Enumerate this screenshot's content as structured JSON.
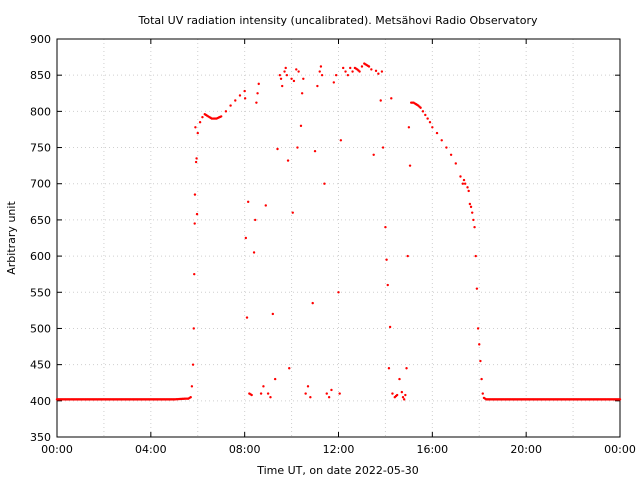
{
  "chart_data": {
    "type": "scatter",
    "title": "Total UV radiation intensity (uncalibrated). Metsähovi Radio Observatory",
    "xlabel": "Time UT, on date 2022-05-30",
    "ylabel": "Arbitrary unit",
    "xlim_hours": [
      0,
      24
    ],
    "ylim": [
      350,
      900
    ],
    "x_ticks": [
      "00:00",
      "04:00",
      "08:00",
      "12:00",
      "16:00",
      "20:00",
      "00:00"
    ],
    "y_ticks": [
      350,
      400,
      450,
      500,
      550,
      600,
      650,
      700,
      750,
      800,
      850,
      900
    ],
    "grid": true,
    "marker_color": "#ff0000",
    "series": [
      {
        "values_hours_vs_intensity": [
          [
            0.0,
            402
          ],
          [
            0.5,
            402
          ],
          [
            1.0,
            402
          ],
          [
            1.5,
            402
          ],
          [
            2.0,
            402
          ],
          [
            2.5,
            402
          ],
          [
            3.0,
            402
          ],
          [
            3.5,
            402
          ],
          [
            4.0,
            402
          ],
          [
            4.5,
            402
          ],
          [
            5.0,
            402
          ],
          [
            5.5,
            403
          ],
          [
            5.6,
            403
          ],
          [
            5.7,
            405
          ],
          [
            5.75,
            420
          ],
          [
            5.8,
            450
          ],
          [
            5.83,
            500
          ],
          [
            5.85,
            575
          ],
          [
            5.87,
            645
          ],
          [
            5.88,
            685
          ],
          [
            5.9,
            778
          ],
          [
            5.93,
            730
          ],
          [
            5.95,
            735
          ],
          [
            5.97,
            658
          ],
          [
            6.0,
            770
          ],
          [
            6.1,
            785
          ],
          [
            6.2,
            792
          ],
          [
            6.3,
            796
          ],
          [
            6.4,
            794
          ],
          [
            6.5,
            792
          ],
          [
            6.6,
            790
          ],
          [
            6.7,
            790
          ],
          [
            6.8,
            790
          ],
          [
            7.0,
            793
          ],
          [
            7.2,
            800
          ],
          [
            7.4,
            808
          ],
          [
            7.6,
            815
          ],
          [
            7.8,
            822
          ],
          [
            8.0,
            828
          ],
          [
            8.02,
            818
          ],
          [
            8.05,
            625
          ],
          [
            8.1,
            515
          ],
          [
            8.15,
            675
          ],
          [
            8.2,
            410
          ],
          [
            8.3,
            408
          ],
          [
            8.4,
            605
          ],
          [
            8.45,
            650
          ],
          [
            8.5,
            812
          ],
          [
            8.55,
            825
          ],
          [
            8.6,
            838
          ],
          [
            8.7,
            410
          ],
          [
            8.8,
            420
          ],
          [
            8.9,
            670
          ],
          [
            9.0,
            410
          ],
          [
            9.1,
            405
          ],
          [
            9.2,
            520
          ],
          [
            9.3,
            430
          ],
          [
            9.4,
            748
          ],
          [
            9.5,
            850
          ],
          [
            9.55,
            845
          ],
          [
            9.6,
            835
          ],
          [
            9.7,
            855
          ],
          [
            9.75,
            860
          ],
          [
            9.8,
            850
          ],
          [
            9.85,
            732
          ],
          [
            9.9,
            445
          ],
          [
            10.0,
            845
          ],
          [
            10.05,
            660
          ],
          [
            10.1,
            842
          ],
          [
            10.2,
            858
          ],
          [
            10.25,
            750
          ],
          [
            10.3,
            855
          ],
          [
            10.4,
            780
          ],
          [
            10.45,
            825
          ],
          [
            10.5,
            845
          ],
          [
            10.6,
            410
          ],
          [
            10.7,
            420
          ],
          [
            10.8,
            405
          ],
          [
            10.9,
            535
          ],
          [
            11.0,
            745
          ],
          [
            11.1,
            835
          ],
          [
            11.2,
            855
          ],
          [
            11.25,
            862
          ],
          [
            11.3,
            850
          ],
          [
            11.4,
            700
          ],
          [
            11.5,
            410
          ],
          [
            11.6,
            405
          ],
          [
            11.7,
            415
          ],
          [
            11.8,
            840
          ],
          [
            11.9,
            850
          ],
          [
            12.0,
            550
          ],
          [
            12.05,
            410
          ],
          [
            12.1,
            760
          ],
          [
            12.2,
            860
          ],
          [
            12.3,
            855
          ],
          [
            12.4,
            850
          ],
          [
            12.5,
            860
          ],
          [
            12.6,
            855
          ],
          [
            12.7,
            860
          ],
          [
            12.8,
            858
          ],
          [
            12.9,
            855
          ],
          [
            13.0,
            862
          ],
          [
            13.1,
            866
          ],
          [
            13.2,
            864
          ],
          [
            13.3,
            862
          ],
          [
            13.4,
            858
          ],
          [
            13.5,
            740
          ],
          [
            13.6,
            856
          ],
          [
            13.7,
            852
          ],
          [
            13.8,
            815
          ],
          [
            13.85,
            855
          ],
          [
            13.9,
            750
          ],
          [
            14.0,
            640
          ],
          [
            14.05,
            595
          ],
          [
            14.1,
            560
          ],
          [
            14.15,
            445
          ],
          [
            14.2,
            502
          ],
          [
            14.25,
            818
          ],
          [
            14.3,
            410
          ],
          [
            14.4,
            405
          ],
          [
            14.5,
            408
          ],
          [
            14.6,
            430
          ],
          [
            14.7,
            412
          ],
          [
            14.75,
            405
          ],
          [
            14.8,
            402
          ],
          [
            14.85,
            408
          ],
          [
            14.9,
            445
          ],
          [
            14.95,
            600
          ],
          [
            15.0,
            778
          ],
          [
            15.05,
            725
          ],
          [
            15.1,
            812
          ],
          [
            15.2,
            812
          ],
          [
            15.3,
            810
          ],
          [
            15.4,
            808
          ],
          [
            15.5,
            805
          ],
          [
            15.6,
            800
          ],
          [
            15.7,
            795
          ],
          [
            15.8,
            790
          ],
          [
            15.9,
            785
          ],
          [
            16.0,
            778
          ],
          [
            16.2,
            770
          ],
          [
            16.4,
            760
          ],
          [
            16.6,
            750
          ],
          [
            16.8,
            740
          ],
          [
            17.0,
            728
          ],
          [
            17.2,
            710
          ],
          [
            17.3,
            700
          ],
          [
            17.35,
            705
          ],
          [
            17.4,
            700
          ],
          [
            17.5,
            695
          ],
          [
            17.55,
            690
          ],
          [
            17.6,
            672
          ],
          [
            17.65,
            668
          ],
          [
            17.7,
            660
          ],
          [
            17.75,
            650
          ],
          [
            17.8,
            640
          ],
          [
            17.85,
            600
          ],
          [
            17.9,
            555
          ],
          [
            17.95,
            500
          ],
          [
            18.0,
            478
          ],
          [
            18.05,
            455
          ],
          [
            18.1,
            430
          ],
          [
            18.15,
            410
          ],
          [
            18.2,
            404
          ],
          [
            18.3,
            402
          ],
          [
            18.5,
            402
          ],
          [
            19.0,
            402
          ],
          [
            19.5,
            402
          ],
          [
            20.0,
            402
          ],
          [
            20.5,
            402
          ],
          [
            21.0,
            402
          ],
          [
            21.5,
            402
          ],
          [
            22.0,
            402
          ],
          [
            22.5,
            402
          ],
          [
            23.0,
            402
          ],
          [
            23.5,
            402
          ],
          [
            24.0,
            402
          ]
        ]
      }
    ]
  }
}
